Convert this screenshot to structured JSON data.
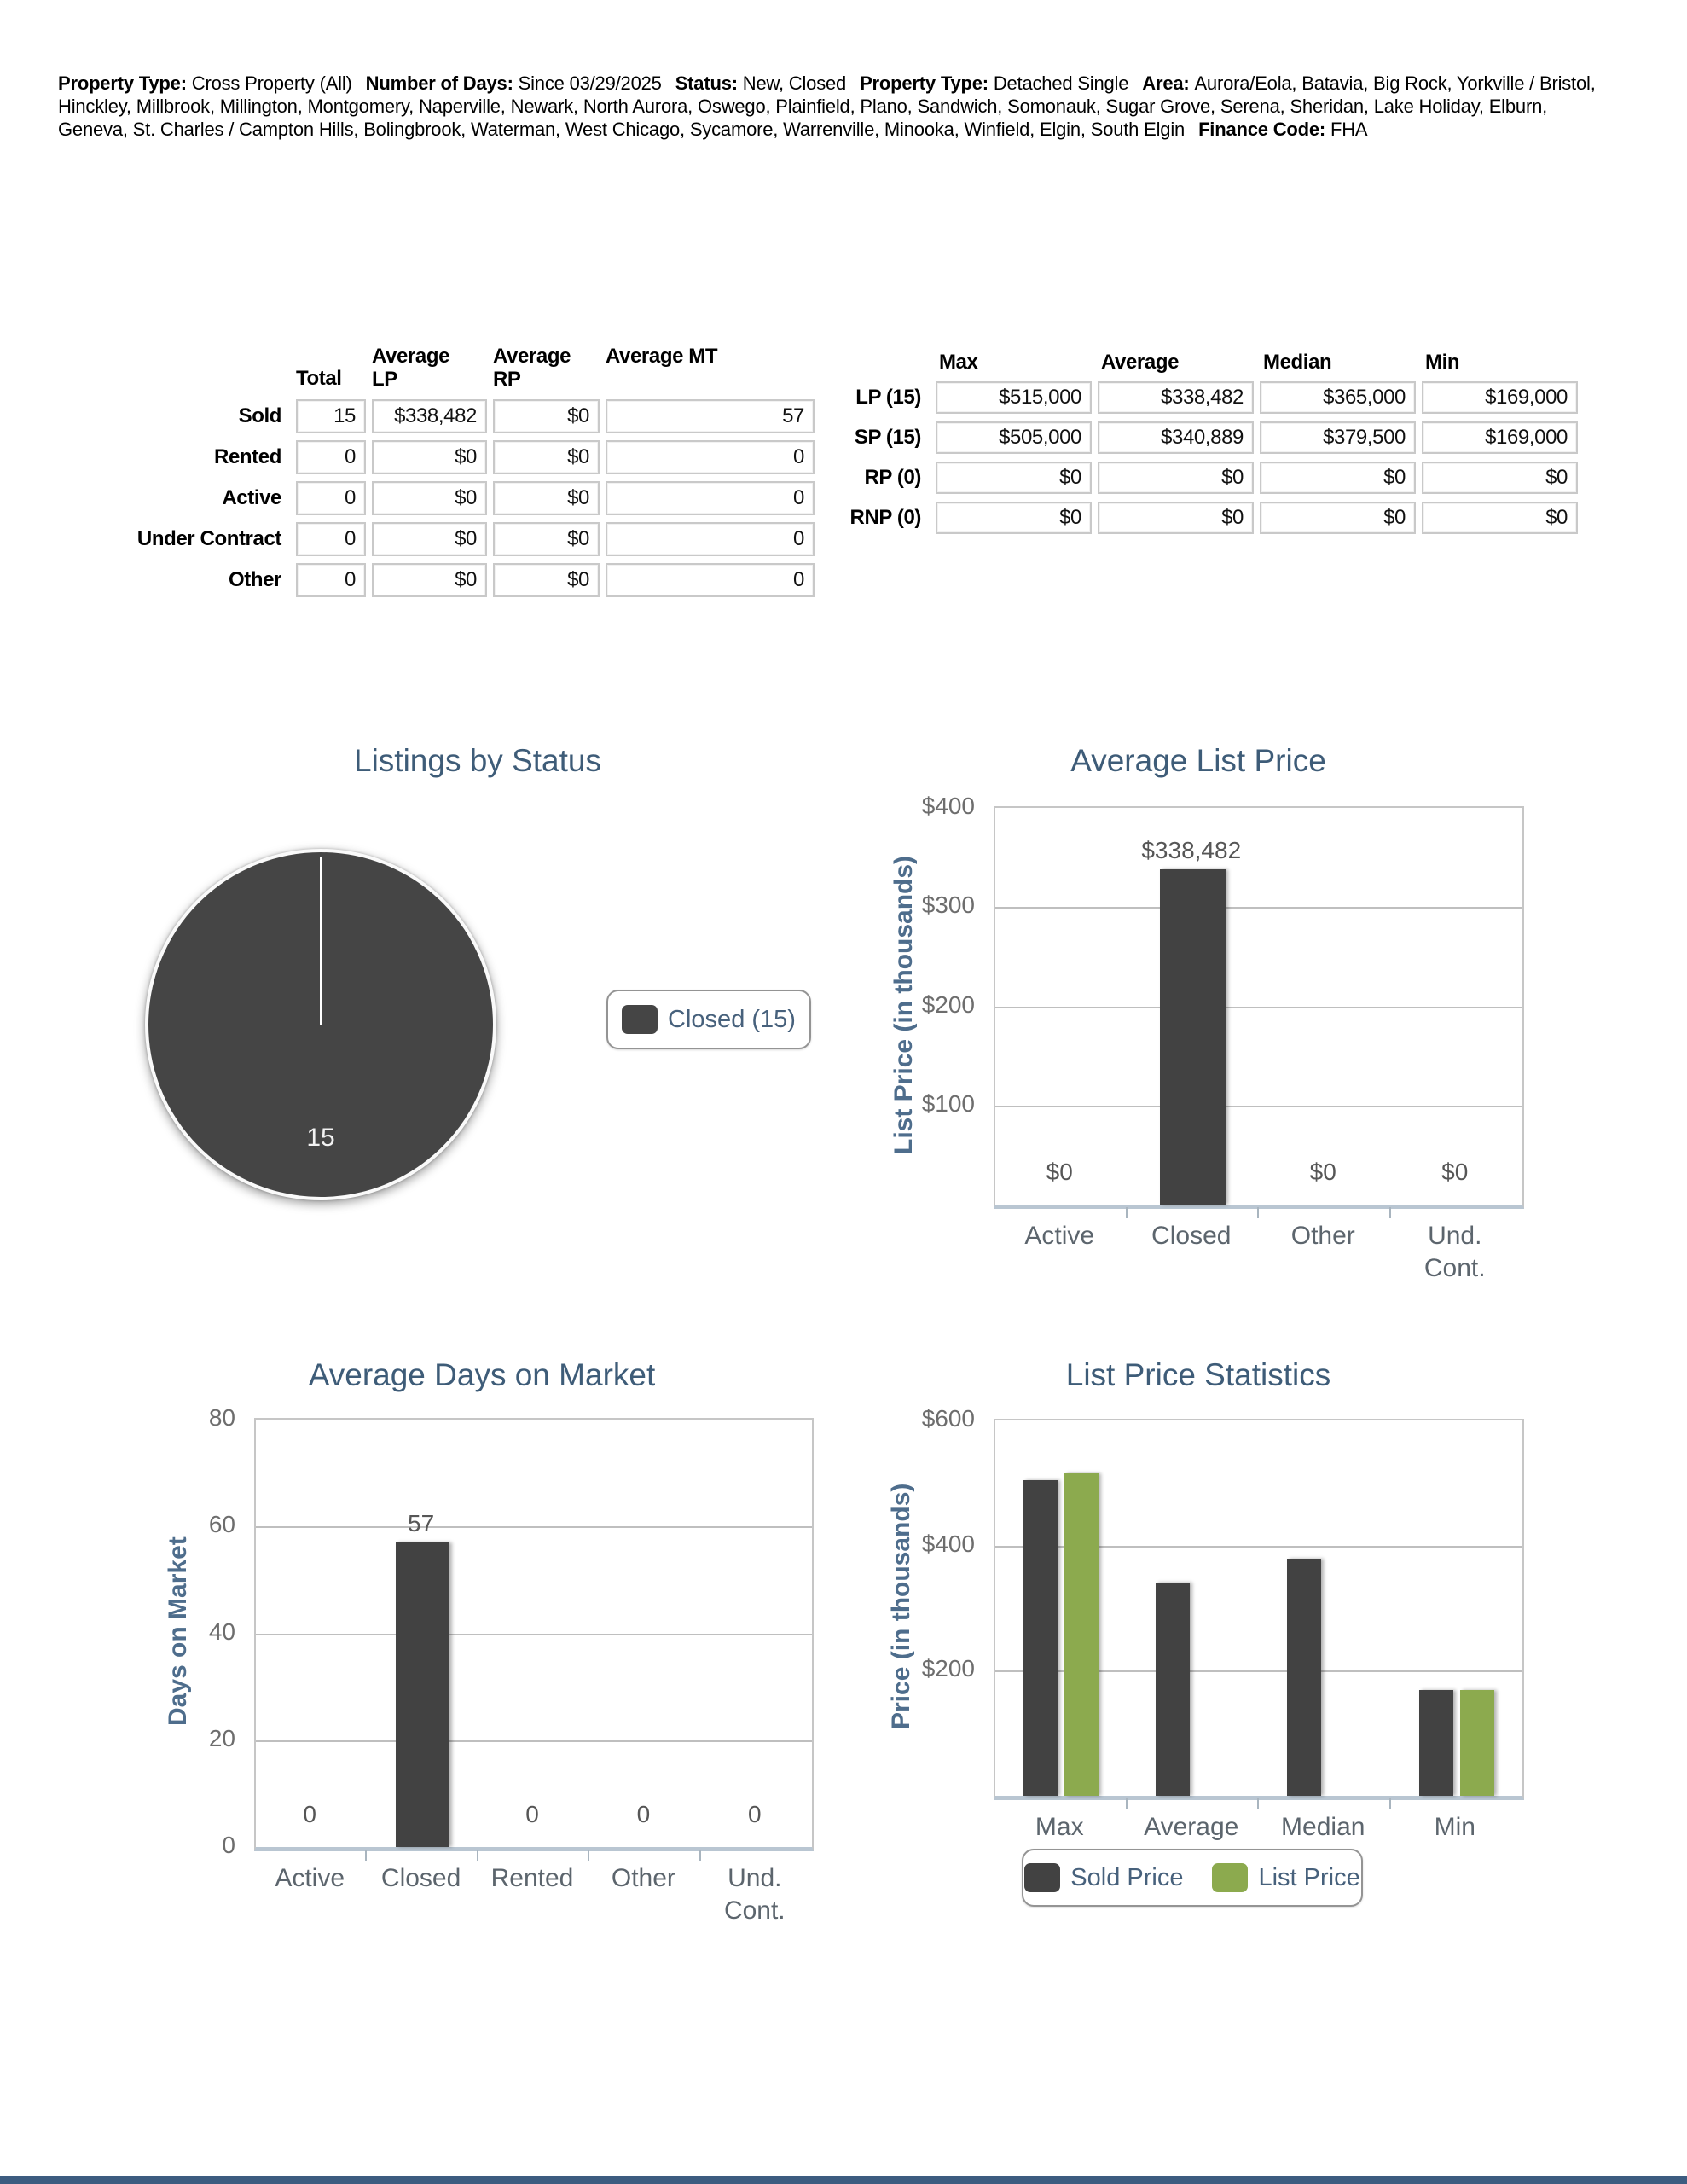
{
  "header": {
    "segments": [
      {
        "label": "Property Type:",
        "value": "Cross Property (All)"
      },
      {
        "label": "Number of Days:",
        "value": "Since 03/29/2025"
      },
      {
        "label": "Status:",
        "value": "New, Closed"
      },
      {
        "label": "Property Type:",
        "value": "Detached Single"
      },
      {
        "label": "Area:",
        "value": "Aurora/Eola, Batavia, Big Rock, Yorkville / Bristol, Hinckley, Millbrook, Millington, Montgomery, Naperville, Newark, North Aurora, Oswego, Plainfield, Plano, Sandwich, Somonauk, Sugar Grove, Serena, Sheridan, Lake Holiday, Elburn, Geneva, St. Charles / Campton Hills, Bolingbrook, Waterman, West Chicago, Sycamore, Warrenville, Minooka, Winfield, Elgin, South Elgin"
      },
      {
        "label": "Finance Code:",
        "value": "FHA"
      }
    ]
  },
  "summary_table": {
    "columns": [
      "Total",
      "Average\nLP",
      "Average\nRP",
      "Average MT"
    ],
    "rows": [
      {
        "label": "Sold",
        "values": [
          "15",
          "$338,482",
          "$0",
          "57"
        ]
      },
      {
        "label": "Rented",
        "values": [
          "0",
          "$0",
          "$0",
          "0"
        ]
      },
      {
        "label": "Active",
        "values": [
          "0",
          "$0",
          "$0",
          "0"
        ]
      },
      {
        "label": "Under Contract",
        "values": [
          "0",
          "$0",
          "$0",
          "0"
        ]
      },
      {
        "label": "Other",
        "values": [
          "0",
          "$0",
          "$0",
          "0"
        ]
      }
    ]
  },
  "stats_table": {
    "columns": [
      "Max",
      "Average",
      "Median",
      "Min"
    ],
    "rows": [
      {
        "label": "LP (15)",
        "values": [
          "$515,000",
          "$338,482",
          "$365,000",
          "$169,000"
        ]
      },
      {
        "label": "SP (15)",
        "values": [
          "$505,000",
          "$340,889",
          "$379,500",
          "$169,000"
        ]
      },
      {
        "label": "RP (0)",
        "values": [
          "$0",
          "$0",
          "$0",
          "$0"
        ]
      },
      {
        "label": "RNP (0)",
        "values": [
          "$0",
          "$0",
          "$0",
          "$0"
        ]
      }
    ]
  },
  "chart_data": [
    {
      "type": "pie",
      "title": "Listings by Status",
      "slices": [
        {
          "label": "Closed",
          "value": 15,
          "value_label": "15",
          "color": "#454545"
        }
      ],
      "legend": [
        "Closed (15)"
      ],
      "legend_position": "right"
    },
    {
      "type": "bar",
      "title": "Average List Price",
      "ylabel": "List Price (in thousands)",
      "xlabel": "",
      "categories": [
        "Active",
        "Closed",
        "Other",
        "Und.\nCont."
      ],
      "values": [
        0,
        338.482,
        0,
        0
      ],
      "value_labels": [
        "$0",
        "$338,482",
        "$0",
        "$0"
      ],
      "ylim": [
        0,
        400
      ],
      "yticks": [
        {
          "value": 400,
          "label": "$400"
        },
        {
          "value": 300,
          "label": "$300"
        },
        {
          "value": 200,
          "label": "$200"
        },
        {
          "value": 100,
          "label": "$100"
        }
      ],
      "bar_color": "#424242",
      "grid": true
    },
    {
      "type": "bar",
      "title": "Average Days on Market",
      "ylabel": "Days on Market",
      "xlabel": "",
      "categories": [
        "Active",
        "Closed",
        "Rented",
        "Other",
        "Und.\nCont."
      ],
      "values": [
        0,
        57,
        0,
        0,
        0
      ],
      "value_labels": [
        "0",
        "57",
        "0",
        "0",
        "0"
      ],
      "ylim": [
        0,
        80
      ],
      "yticks": [
        {
          "value": 80,
          "label": "80"
        },
        {
          "value": 60,
          "label": "60"
        },
        {
          "value": 40,
          "label": "40"
        },
        {
          "value": 20,
          "label": "20"
        },
        {
          "value": 0,
          "label": "0"
        }
      ],
      "bar_color": "#424242",
      "grid": true
    },
    {
      "type": "bar",
      "title": "List Price Statistics",
      "ylabel": "Price (in thousands)",
      "xlabel": "",
      "categories": [
        "Max",
        "Average",
        "Median",
        "Min"
      ],
      "series": [
        {
          "name": "Sold Price",
          "color": "#424242",
          "values": [
            505,
            340.889,
            379.5,
            169
          ]
        },
        {
          "name": "List Price",
          "color": "#8caa4e",
          "values": [
            515,
            null,
            null,
            169
          ]
        }
      ],
      "ylim": [
        0,
        600
      ],
      "yticks": [
        {
          "value": 600,
          "label": "$600"
        },
        {
          "value": 400,
          "label": "$400"
        },
        {
          "value": 200,
          "label": "$200"
        }
      ],
      "grid": true,
      "legend_position": "bottom"
    }
  ],
  "colors": {
    "title": "#3e5c78",
    "axis_label": "#4e6d8c",
    "tick_label": "#6d6d6d",
    "category_label": "#5c656d",
    "bar_dark": "#424242",
    "bar_green": "#8caa4e",
    "value_label": "#565656",
    "footer_bar": "#3d5c80"
  }
}
